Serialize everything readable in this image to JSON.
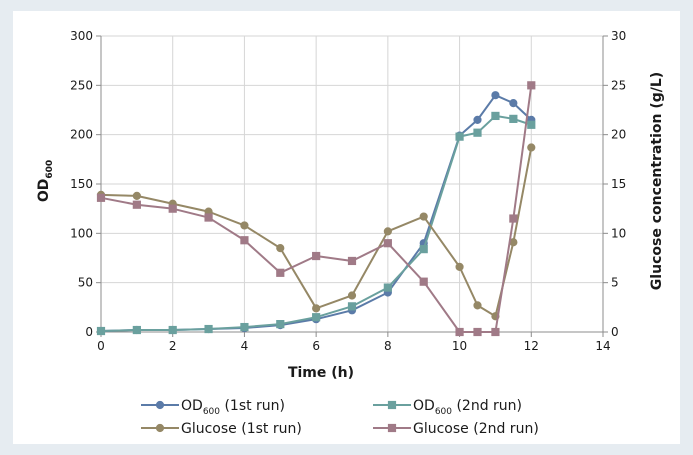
{
  "chart_data": {
    "type": "line",
    "title": "",
    "xlabel": "Time (h)",
    "ylabel": {
      "main": "OD",
      "sub": "600"
    },
    "y2label": "Glucose concentration (g/L)",
    "xlim": [
      0,
      14
    ],
    "ylim": [
      0,
      300
    ],
    "y2lim": [
      0,
      30
    ],
    "x_ticks": [
      "0",
      "2",
      "4",
      "6",
      "8",
      "10",
      "12",
      "14"
    ],
    "y_ticks": [
      "0",
      "50",
      "100",
      "150",
      "200",
      "250",
      "300"
    ],
    "y2_ticks": [
      "0",
      "5",
      "10",
      "15",
      "20",
      "25",
      "30"
    ],
    "grid": true,
    "legend_position": "bottom",
    "series": [
      {
        "name": {
          "main": "OD",
          "sub": "600",
          "suffix": " (1st run)"
        },
        "axis": "left",
        "color": "#5b7ba8",
        "marker": "circle",
        "x": [
          0,
          1,
          2,
          3,
          4,
          5,
          6,
          7,
          8,
          9,
          10,
          10.5,
          11,
          11.5,
          12
        ],
        "y": [
          1,
          2,
          2,
          3,
          4,
          7,
          13,
          22,
          40,
          90,
          199,
          215,
          240,
          232,
          215
        ]
      },
      {
        "name": {
          "main": "OD",
          "sub": "600",
          "suffix": " (2nd run)"
        },
        "axis": "left",
        "color": "#6aa09e",
        "marker": "square",
        "x": [
          0,
          1,
          2,
          3,
          4,
          5,
          6,
          7,
          8,
          9,
          10,
          10.5,
          11,
          11.5,
          12
        ],
        "y": [
          1,
          2,
          2,
          3,
          5,
          8,
          15,
          26,
          45,
          84,
          198,
          202,
          219,
          216,
          210
        ]
      },
      {
        "name": {
          "main": "Glucose (1st run)",
          "sub": "",
          "suffix": ""
        },
        "axis": "right",
        "color": "#958866",
        "marker": "circle",
        "x": [
          0,
          1,
          2,
          3,
          4,
          5,
          6,
          7,
          8,
          9,
          10,
          10.5,
          11,
          11.5,
          12
        ],
        "y": [
          13.9,
          13.8,
          13.0,
          12.2,
          10.8,
          8.5,
          2.4,
          3.7,
          10.2,
          11.7,
          6.6,
          2.7,
          1.6,
          9.1,
          18.7
        ]
      },
      {
        "name": {
          "main": "Glucose (2nd run)",
          "sub": "",
          "suffix": ""
        },
        "axis": "right",
        "color": "#a07a87",
        "marker": "square",
        "x": [
          0,
          1,
          2,
          3,
          4,
          5,
          6,
          7,
          8,
          9,
          10,
          10.5,
          11,
          11.5,
          12
        ],
        "y": [
          13.6,
          12.9,
          12.5,
          11.6,
          9.3,
          6.0,
          7.7,
          7.2,
          9.0,
          5.1,
          0.0,
          0.0,
          0.0,
          11.5,
          25.0
        ]
      }
    ]
  }
}
